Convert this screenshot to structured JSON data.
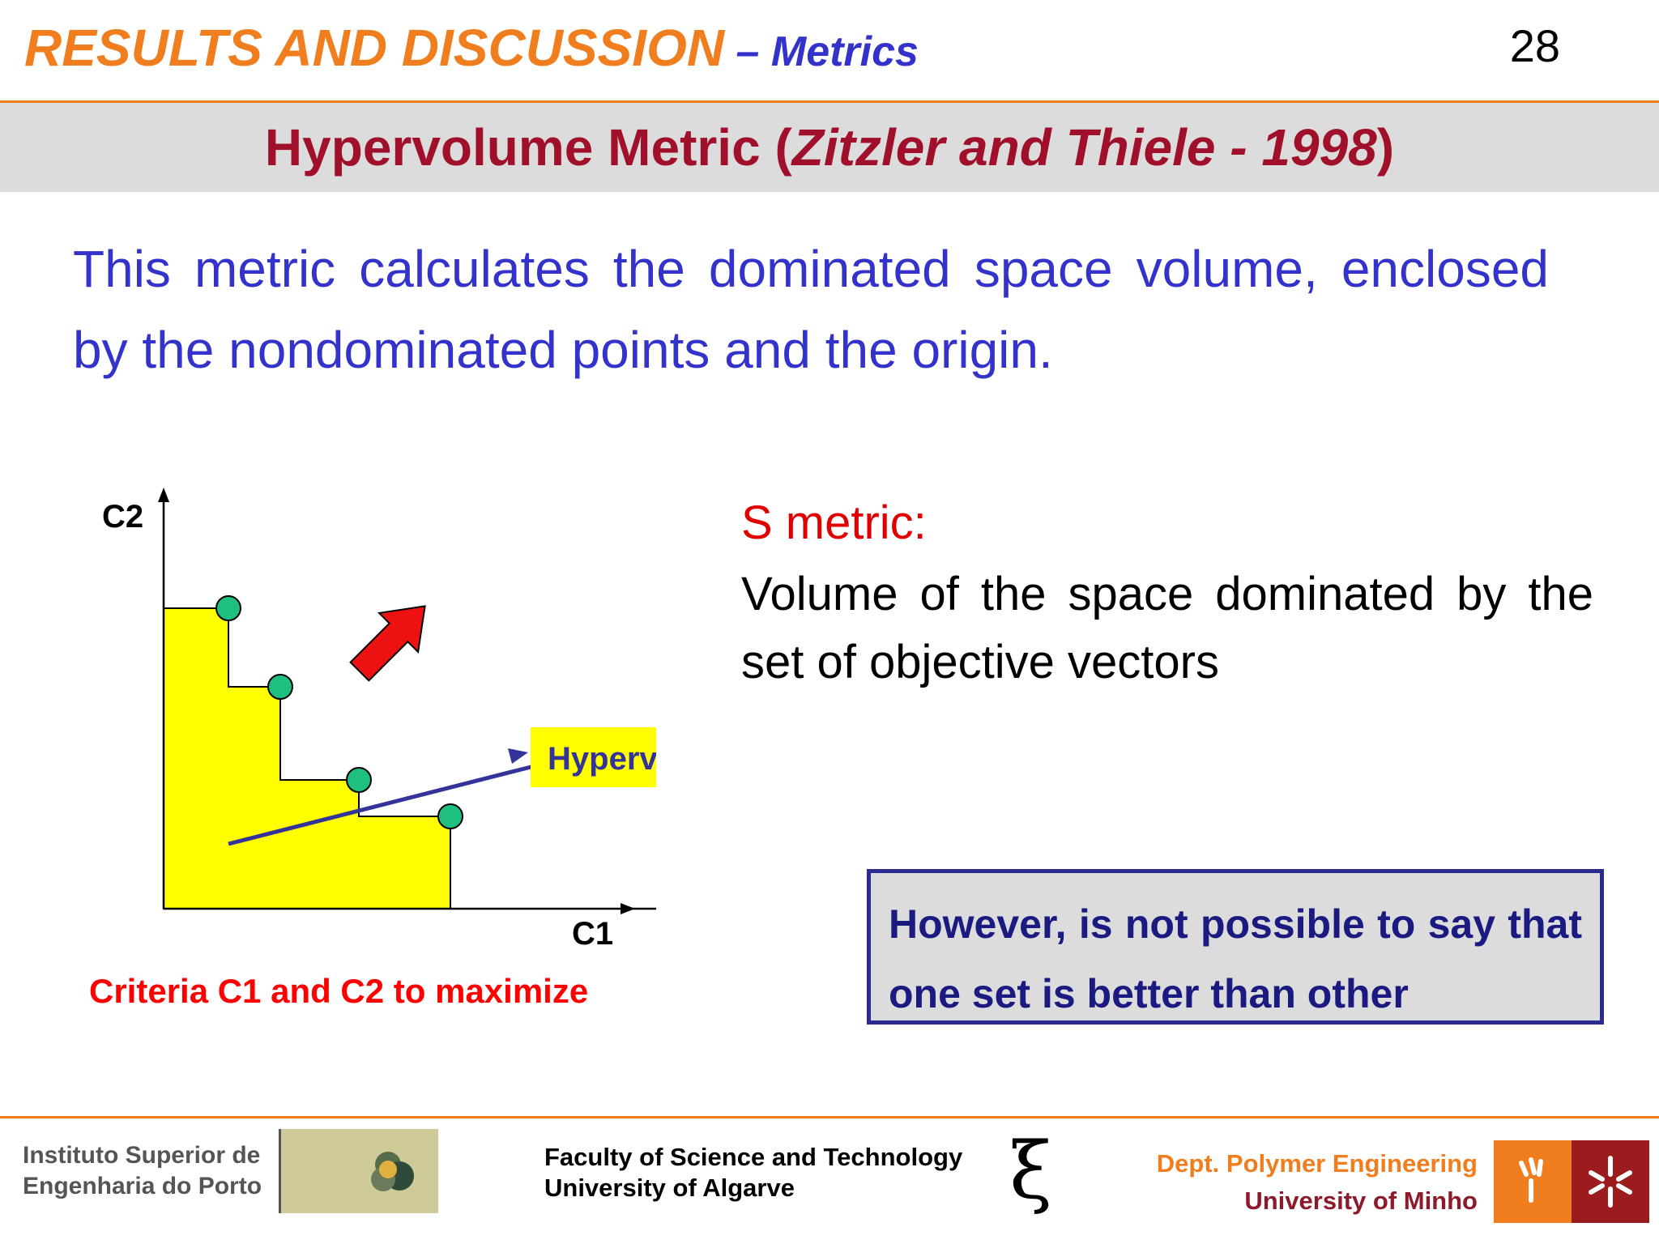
{
  "header": {
    "title_main": "RESULTS AND DISCUSSION",
    "title_sub": " – Metrics",
    "page_number": "28"
  },
  "section": {
    "title_prefix": "Hypervolume Metric (",
    "title_italic": "Zitzler and Thiele - 1998",
    "title_suffix": ")"
  },
  "intro_text": "This metric calculates the dominated space volume, enclosed by the nondominated points and the origin.",
  "diagram": {
    "y_axis_label": "C2",
    "x_axis_label": "C1",
    "callout_label": "Hypervolume",
    "caption": "Criteria C1 and C2 to maximize",
    "colors": {
      "area": "#ffff00",
      "points": "#1fbf7f",
      "arrow": "#ee1111",
      "callout_line": "#333399"
    }
  },
  "s_metric": {
    "title": "S metric:",
    "description": "Volume of the space dominated by the set of objective vectors"
  },
  "note": "However, is not possible to say that one set is better than other",
  "footer": {
    "isep_line1": "Instituto Superior de",
    "isep_line2": "Engenharia do Porto",
    "fct_line1": "Faculty of Science and Technology",
    "fct_line2": "University of Algarve",
    "xi_symbol": "ξ",
    "dept_line1": "Dept. Polymer Engineering",
    "dept_line2": "University of Minho"
  }
}
